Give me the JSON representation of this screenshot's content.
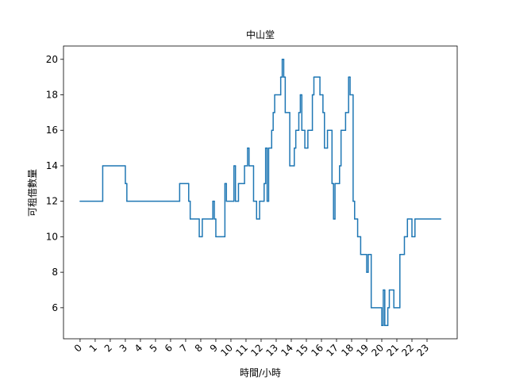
{
  "chart_data": {
    "type": "line",
    "drawstyle": "steps-post",
    "title": "中山堂",
    "xlabel": "時間/小時",
    "ylabel": "可租借數量",
    "color": "#1f77b4",
    "x": [
      0,
      1.5,
      3.0,
      3.1,
      6.6,
      7.2,
      7.3,
      7.9,
      8.1,
      8.8,
      8.9,
      9.0,
      9.6,
      9.7,
      10.2,
      10.3,
      10.5,
      10.9,
      11.1,
      11.2,
      11.5,
      11.7,
      11.9,
      12.2,
      12.3,
      12.4,
      12.5,
      12.7,
      12.8,
      12.9,
      13.3,
      13.4,
      13.5,
      13.6,
      13.9,
      14.2,
      14.3,
      14.5,
      14.6,
      14.7,
      14.9,
      15.1,
      15.4,
      15.5,
      15.9,
      16.1,
      16.2,
      16.4,
      16.7,
      16.8,
      16.9,
      17.2,
      17.3,
      17.6,
      17.8,
      17.9,
      18.1,
      18.2,
      18.4,
      18.6,
      19.0,
      19.1,
      19.3,
      20.0,
      20.1,
      20.2,
      20.4,
      20.5,
      20.8,
      21.2,
      21.5,
      21.7,
      22.0,
      22.2,
      23.9
    ],
    "values": [
      12,
      14,
      13,
      12,
      13,
      12,
      11,
      10,
      11,
      12,
      11,
      10,
      13,
      12,
      14,
      12,
      13,
      14,
      15,
      14,
      12,
      11,
      12,
      13,
      15,
      12,
      15,
      16,
      17,
      18,
      19,
      20,
      19,
      17,
      14,
      15,
      16,
      17,
      18,
      16,
      15,
      16,
      18,
      19,
      18,
      17,
      15,
      16,
      13,
      11,
      13,
      14,
      16,
      17,
      19,
      18,
      12,
      11,
      10,
      9,
      8,
      9,
      6,
      5,
      7,
      5,
      6,
      7,
      6,
      9,
      10,
      11,
      10,
      11,
      11
    ],
    "xlim": [
      -1.1,
      25.0
    ],
    "xticks": [
      0,
      1,
      2,
      3,
      4,
      5,
      6,
      7,
      8,
      9,
      10,
      11,
      12,
      13,
      14,
      15,
      16,
      17,
      18,
      19,
      20,
      21,
      22,
      23
    ],
    "ylim": [
      4.25,
      20.75
    ],
    "yticks": [
      6,
      8,
      10,
      12,
      14,
      16,
      18,
      20
    ]
  }
}
